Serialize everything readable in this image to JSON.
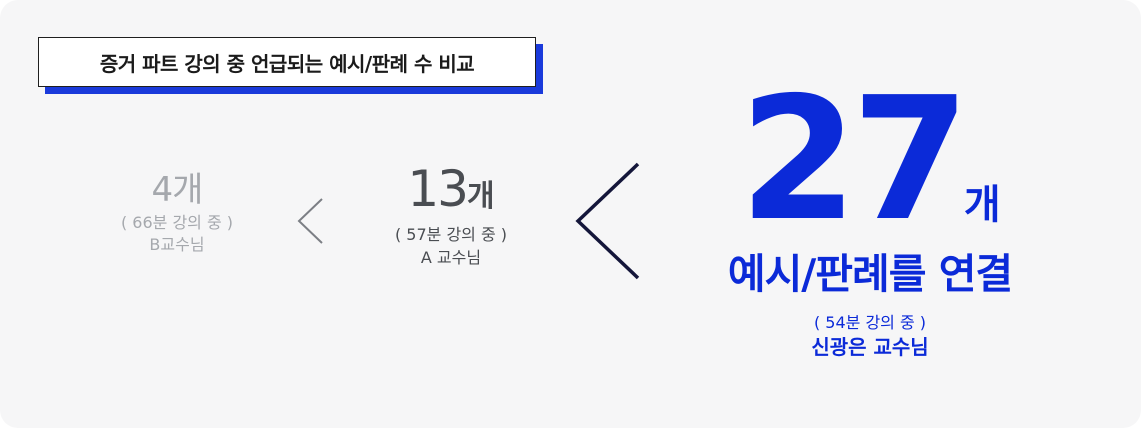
{
  "title": "증거 파트 강의 중 언급되는 예시/판례 수 비교",
  "professor_b": {
    "count": "4개",
    "duration": "( 66분 강의 중 )",
    "name": "B교수님"
  },
  "professor_a": {
    "count_number": "13",
    "count_unit": "개",
    "duration": "( 57분 강의 중 )",
    "name": "A 교수님"
  },
  "professor_shin": {
    "count_number": "27",
    "count_unit": "개",
    "tagline": "예시/판례를 연결",
    "duration": "( 54분 강의 중 )",
    "name": "신광은 교수님"
  },
  "icons": {
    "small_less_than": "less-than-chevron-icon",
    "large_less_than": "less-than-chevron-icon"
  },
  "colors": {
    "accent": "#0b2ad8",
    "muted": "#a5a8ad",
    "dark": "#4a4d52",
    "background": "#f6f6f7"
  }
}
